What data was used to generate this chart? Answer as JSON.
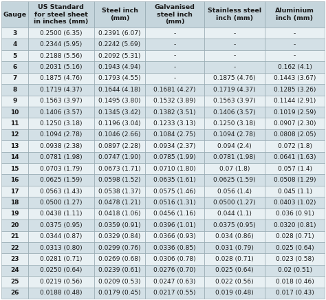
{
  "columns": [
    "Gauge",
    "US Standard\nfor steel sheet\nin inches (mm)",
    "Steel inch\n(mm)",
    "Galvanised\nsteel inch\n(mm)",
    "Stainless steel\ninch (mm)",
    "Aluminium\ninch (mm)"
  ],
  "col_weights": [
    0.082,
    0.205,
    0.158,
    0.182,
    0.188,
    0.185
  ],
  "rows": [
    [
      "3",
      "0.2500 (6.35)",
      "0.2391 (6.07)",
      "-",
      "-",
      "-"
    ],
    [
      "4",
      "0.2344 (5.95)",
      "0.2242 (5.69)",
      "-",
      "-",
      "-"
    ],
    [
      "5",
      "0.2188 (5.56)",
      "0.2092 (5.31)",
      "-",
      "-",
      "-"
    ],
    [
      "6",
      "0.2031 (5.16)",
      "0.1943 (4.94)",
      "-",
      "-",
      "0.162 (4.1)"
    ],
    [
      "7",
      "0.1875 (4.76)",
      "0.1793 (4.55)",
      "-",
      "0.1875 (4.76)",
      "0.1443 (3.67)"
    ],
    [
      "8",
      "0.1719 (4.37)",
      "0.1644 (4.18)",
      "0.1681 (4.27)",
      "0.1719 (4.37)",
      "0.1285 (3.26)"
    ],
    [
      "9",
      "0.1563 (3.97)",
      "0.1495 (3.80)",
      "0.1532 (3.89)",
      "0.1563 (3.97)",
      "0.1144 (2.91)"
    ],
    [
      "10",
      "0.1406 (3.57)",
      "0.1345 (3.42)",
      "0.1382 (3.51)",
      "0.1406 (3.57)",
      "0.1019 (2.59)"
    ],
    [
      "11",
      "0.1250 (3.18)",
      "0.1196 (3.04)",
      "0.1233 (3.13)",
      "0.1250 (3.18)",
      "0.0907 (2.30)"
    ],
    [
      "12",
      "0.1094 (2.78)",
      "0.1046 (2.66)",
      "0.1084 (2.75)",
      "0.1094 (2.78)",
      "0.0808 (2.05)"
    ],
    [
      "13",
      "0.0938 (2.38)",
      "0.0897 (2.28)",
      "0.0934 (2.37)",
      "0.094 (2.4)",
      "0.072 (1.8)"
    ],
    [
      "14",
      "0.0781 (1.98)",
      "0.0747 (1.90)",
      "0.0785 (1.99)",
      "0.0781 (1.98)",
      "0.0641 (1.63)"
    ],
    [
      "15",
      "0.0703 (1.79)",
      "0.0673 (1.71)",
      "0.0710 (1.80)",
      "0.07 (1.8)",
      "0.057 (1.4)"
    ],
    [
      "16",
      "0.0625 (1.59)",
      "0.0598 (1.52)",
      "0.0635 (1.61)",
      "0.0625 (1.59)",
      "0.0508 (1.29)"
    ],
    [
      "17",
      "0.0563 (1.43)",
      "0.0538 (1.37)",
      "0.0575 (1.46)",
      "0.056 (1.4)",
      "0.045 (1.1)"
    ],
    [
      "18",
      "0.0500 (1.27)",
      "0.0478 (1.21)",
      "0.0516 (1.31)",
      "0.0500 (1.27)",
      "0.0403 (1.02)"
    ],
    [
      "19",
      "0.0438 (1.11)",
      "0.0418 (1.06)",
      "0.0456 (1.16)",
      "0.044 (1.1)",
      "0.036 (0.91)"
    ],
    [
      "20",
      "0.0375 (0.95)",
      "0.0359 (0.91)",
      "0.0396 (1.01)",
      "0.0375 (0.95)",
      "0.0320 (0.81)"
    ],
    [
      "21",
      "0.0344 (0.87)",
      "0.0329 (0.84)",
      "0.0366 (0.93)",
      "0.034 (0.86)",
      "0.028 (0.71)"
    ],
    [
      "22",
      "0.0313 (0.80)",
      "0.0299 (0.76)",
      "0.0336 (0.85)",
      "0.031 (0.79)",
      "0.025 (0.64)"
    ],
    [
      "23",
      "0.0281 (0.71)",
      "0.0269 (0.68)",
      "0.0306 (0.78)",
      "0.028 (0.71)",
      "0.023 (0.58)"
    ],
    [
      "24",
      "0.0250 (0.64)",
      "0.0239 (0.61)",
      "0.0276 (0.70)",
      "0.025 (0.64)",
      "0.02 (0.51)"
    ],
    [
      "25",
      "0.0219 (0.56)",
      "0.0209 (0.53)",
      "0.0247 (0.63)",
      "0.022 (0.56)",
      "0.018 (0.46)"
    ],
    [
      "26",
      "0.0188 (0.48)",
      "0.0179 (0.45)",
      "0.0217 (0.55)",
      "0.019 (0.48)",
      "0.017 (0.43)"
    ]
  ],
  "header_bg": "#c5d5dc",
  "row_bg_light": "#e8f0f3",
  "row_bg_dark": "#d3e0e6",
  "border_color": "#8a9fa8",
  "text_color": "#1a1a1a",
  "header_fontsize": 6.8,
  "cell_fontsize": 6.5
}
